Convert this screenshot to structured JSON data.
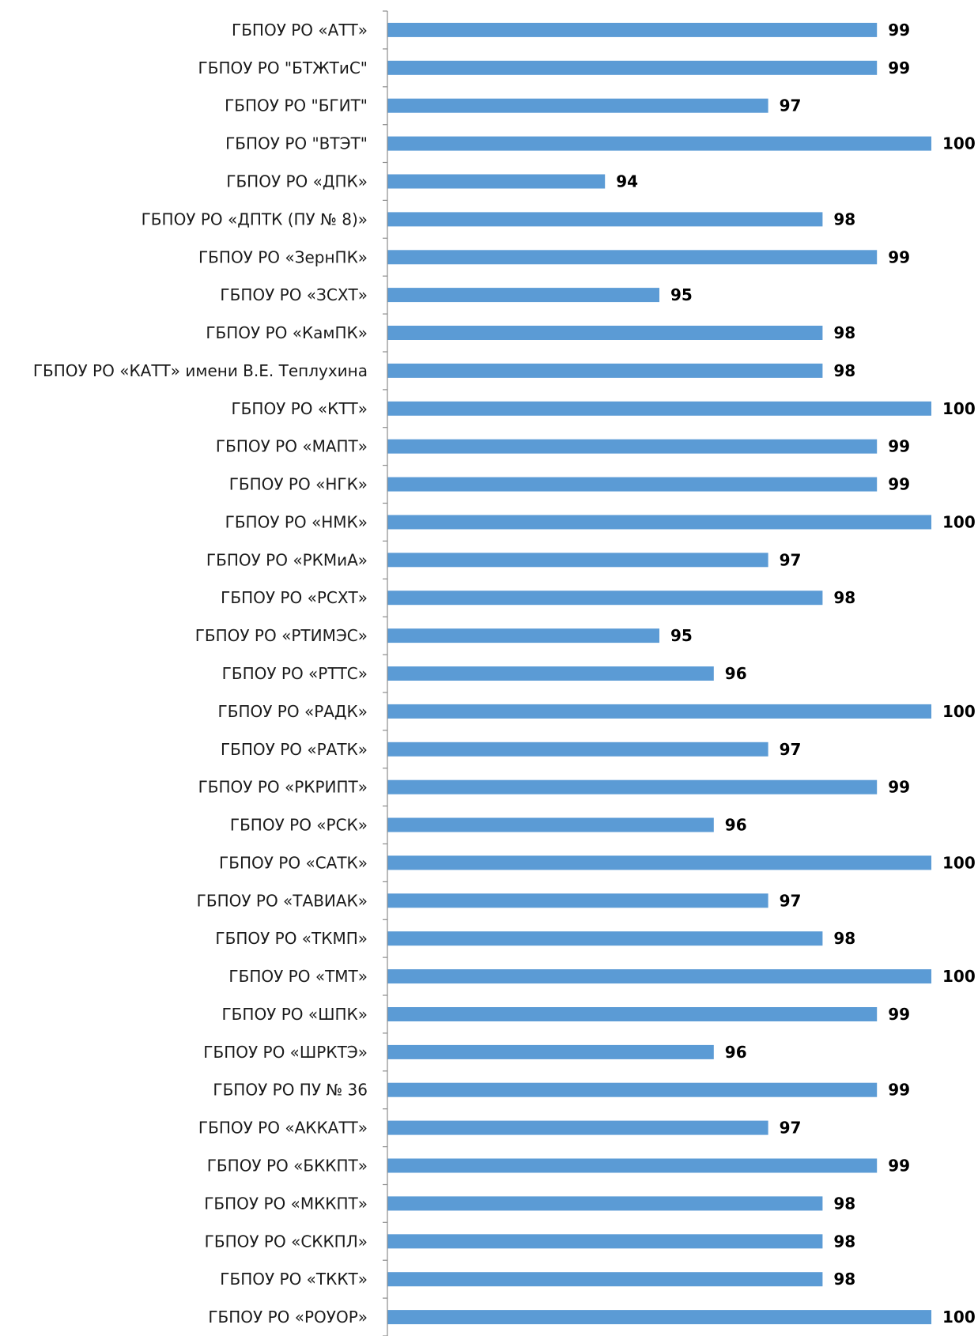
{
  "chart_data": {
    "type": "bar",
    "orientation": "horizontal",
    "title": "",
    "xlabel": "",
    "ylabel": "",
    "grid": false,
    "legend": "none",
    "bar_color": "#5b9bd5",
    "xlim": [
      90,
      100
    ],
    "categories": [
      "ГБПОУ РО «АТТ»",
      "ГБПОУ РО \"БТЖТиС\"",
      "ГБПОУ РО \"БГИТ\"",
      "ГБПОУ РО \"ВТЭТ\"",
      "ГБПОУ РО «ДПК»",
      "ГБПОУ РО «ДПТК (ПУ № 8)»",
      "ГБПОУ РО «ЗернПК»",
      "ГБПОУ РО «ЗСХТ»",
      "ГБПОУ РО «КамПК»",
      "ГБПОУ РО «КАТТ» имени В.Е. Теплухина",
      "ГБПОУ РО «КТТ»",
      "ГБПОУ РО «МАПТ»",
      "ГБПОУ РО «НГК»",
      "ГБПОУ РО «НМК»",
      "ГБПОУ РО «РКМиА»",
      "ГБПОУ РО «РСХТ»",
      "ГБПОУ РО «РТИМЭС»",
      "ГБПОУ РО «РТТС»",
      "ГБПОУ РО «РАДК»",
      "ГБПОУ РО «РАТК»",
      "ГБПОУ РО «РКРИПТ»",
      "ГБПОУ РО «РСК»",
      "ГБПОУ РО «САТК»",
      "ГБПОУ РО «ТАВИАК»",
      "ГБПОУ РО «ТКМП»",
      "ГБПОУ РО «ТМТ»",
      "ГБПОУ РО «ШПК»",
      "ГБПОУ РО «ШРКТЭ»",
      "ГБПОУ РО ПУ № 36",
      "ГБПОУ РО «АККАТТ»",
      "ГБПОУ РО «БККПТ»",
      "ГБПОУ РО «МККПТ»",
      "ГБПОУ РО «СККПЛ»",
      "ГБПОУ РО «ТККТ»",
      "ГБПОУ РО «РОУОР»"
    ],
    "values": [
      99,
      99,
      97,
      100,
      94,
      98,
      99,
      95,
      98,
      98,
      100,
      99,
      99,
      100,
      97,
      98,
      95,
      96,
      100,
      97,
      99,
      96,
      100,
      97,
      98,
      100,
      99,
      96,
      99,
      97,
      99,
      98,
      98,
      98,
      100
    ]
  }
}
